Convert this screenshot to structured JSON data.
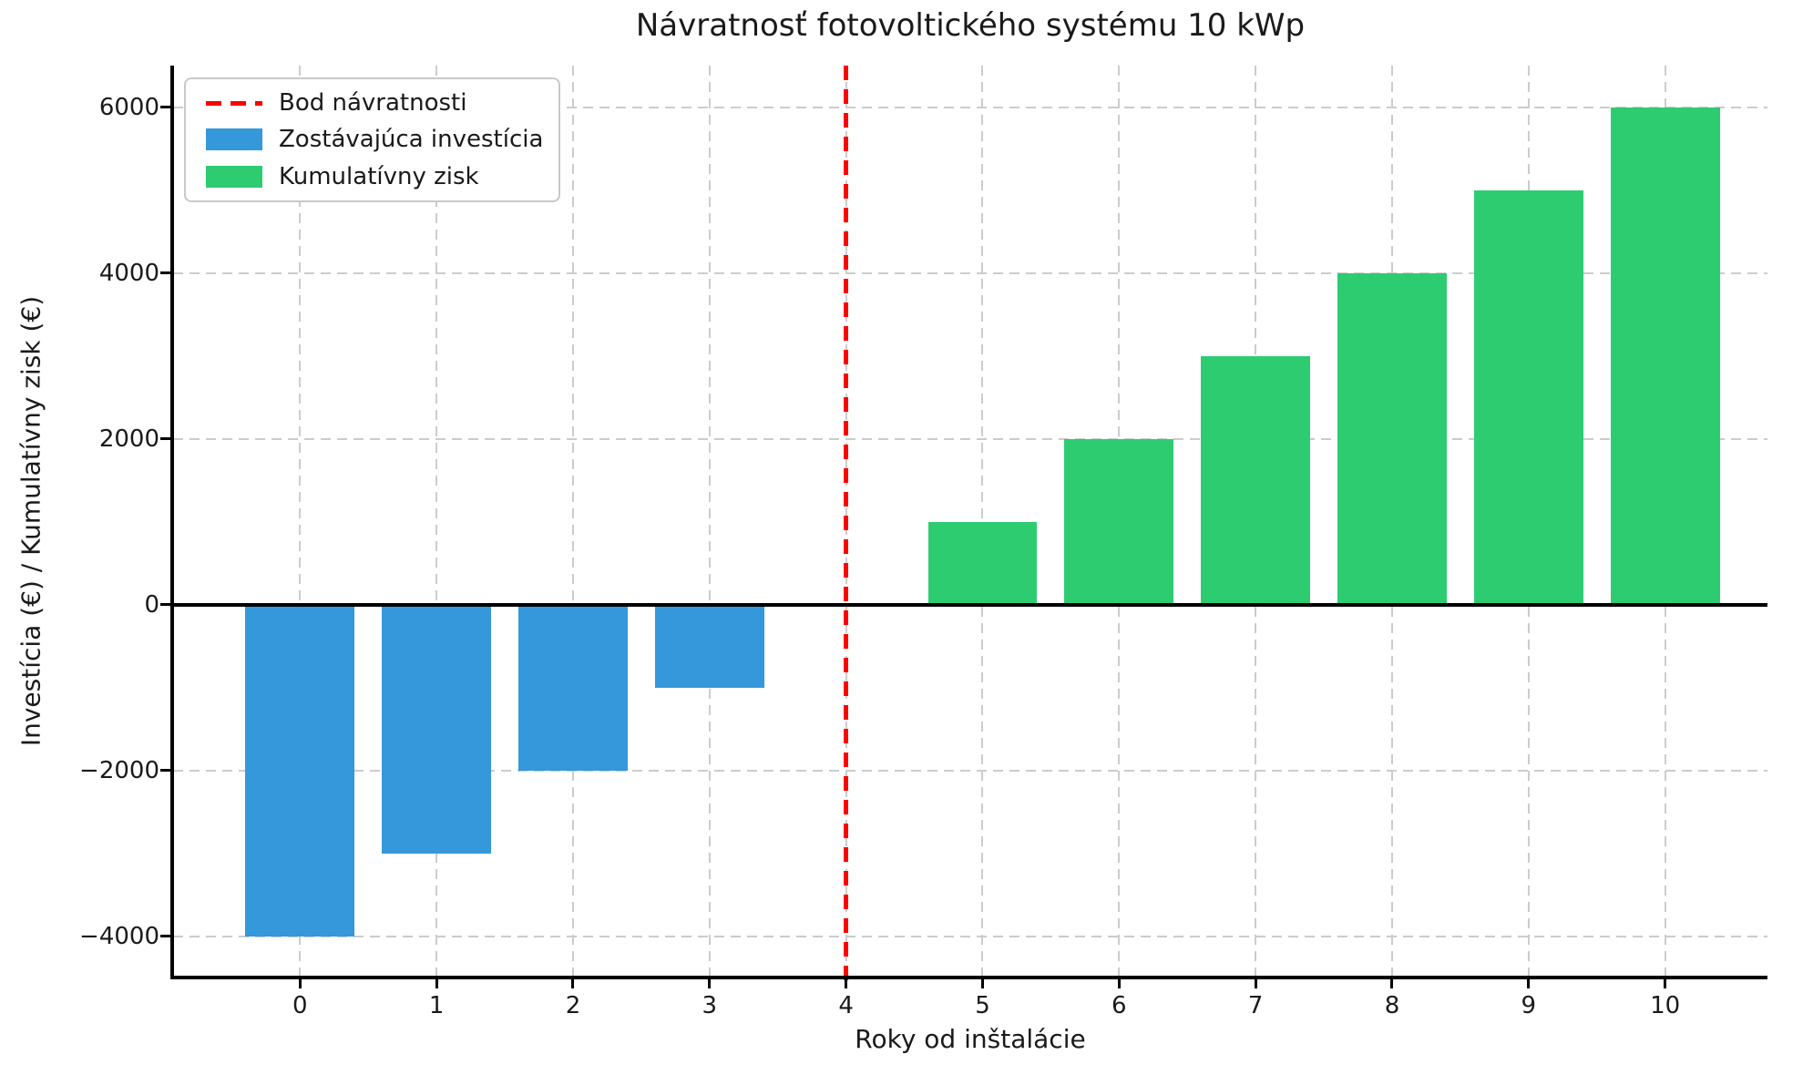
{
  "chart_data": {
    "type": "bar",
    "title": "Návratnosť fotovoltického systému 10 kWp",
    "xlabel": "Roky od inštalácie",
    "ylabel": "Investícia (€) / Kumulatívny zisk (€)",
    "categories": [
      0,
      1,
      2,
      3,
      4,
      5,
      6,
      7,
      8,
      9,
      10
    ],
    "xtick_labels": [
      "0",
      "1",
      "2",
      "3",
      "4",
      "5",
      "6",
      "7",
      "8",
      "9",
      "10"
    ],
    "series": [
      {
        "name": "Zostávajúca investícia",
        "color": "#3498db",
        "values": [
          -4000,
          -3000,
          -2000,
          -1000,
          0,
          null,
          null,
          null,
          null,
          null,
          null
        ]
      },
      {
        "name": "Kumulatívny zisk",
        "color": "#2ecc71",
        "values": [
          null,
          null,
          null,
          null,
          null,
          1000,
          2000,
          3000,
          4000,
          5000,
          6000
        ]
      }
    ],
    "breakeven": {
      "label": "Bod návratnosti",
      "x": 4,
      "color": "#ff0000",
      "line_style": "dashed"
    },
    "bar_width": 0.8,
    "xlim": [
      -0.93,
      10.75
    ],
    "ylim": [
      -4500,
      6500
    ],
    "yticks": [
      -4000,
      -2000,
      0,
      2000,
      4000,
      6000
    ],
    "ytick_labels": [
      "−4000",
      "−2000",
      "0",
      "2000",
      "4000",
      "6000"
    ],
    "grid": {
      "visible": true,
      "style": "dashed",
      "color": "#cccccc"
    },
    "zero_line_color": "#000000",
    "axis_color": "#000000",
    "background": "#ffffff",
    "legend": {
      "position": "upper left",
      "entries": [
        "Bod návratnosti",
        "Zostávajúca investícia",
        "Kumulatívny zisk"
      ]
    }
  }
}
